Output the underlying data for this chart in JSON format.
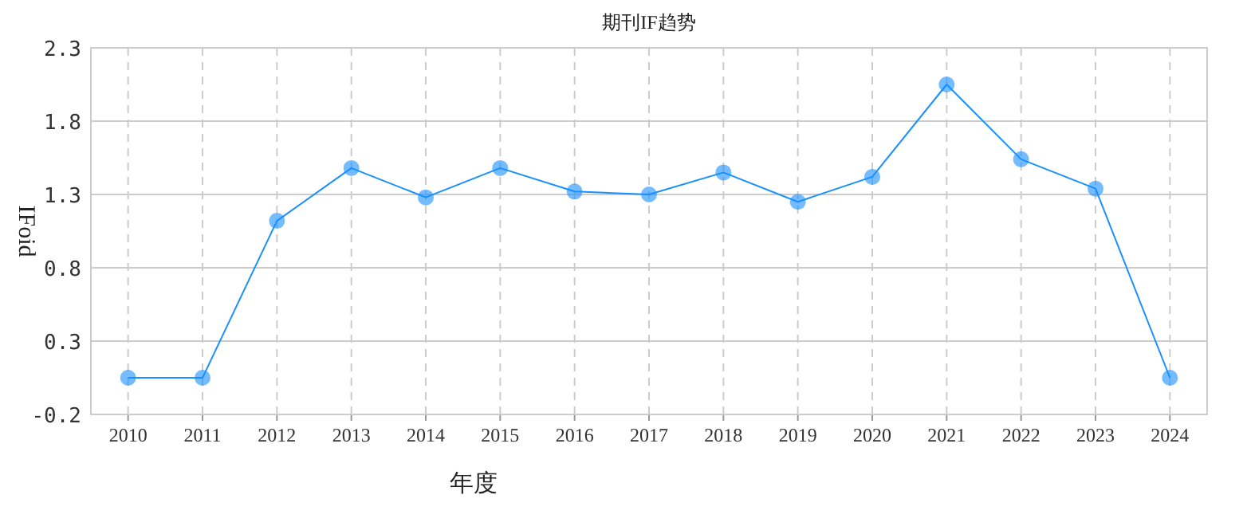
{
  "chart_data": {
    "type": "line",
    "title": "期刊IF趋势",
    "xlabel": "年度",
    "ylabel": "IFoid",
    "categories": [
      "2010",
      "2011",
      "2012",
      "2013",
      "2014",
      "2015",
      "2016",
      "2017",
      "2018",
      "2019",
      "2020",
      "2021",
      "2022",
      "2023",
      "2024"
    ],
    "series": [
      {
        "color": "#1890ff",
        "values": [
          0.05,
          0.05,
          1.12,
          1.48,
          1.28,
          1.48,
          1.32,
          1.3,
          1.45,
          1.25,
          1.42,
          2.05,
          1.54,
          1.34,
          0.05
        ]
      }
    ],
    "ylim": [
      -0.2,
      2.3
    ],
    "yticks": [
      {
        "value": -0.2,
        "label": "-0.2"
      },
      0.3,
      0.8,
      1.3,
      1.8,
      2.3
    ],
    "grid": true,
    "marker": "circle",
    "line_style": "solid"
  }
}
